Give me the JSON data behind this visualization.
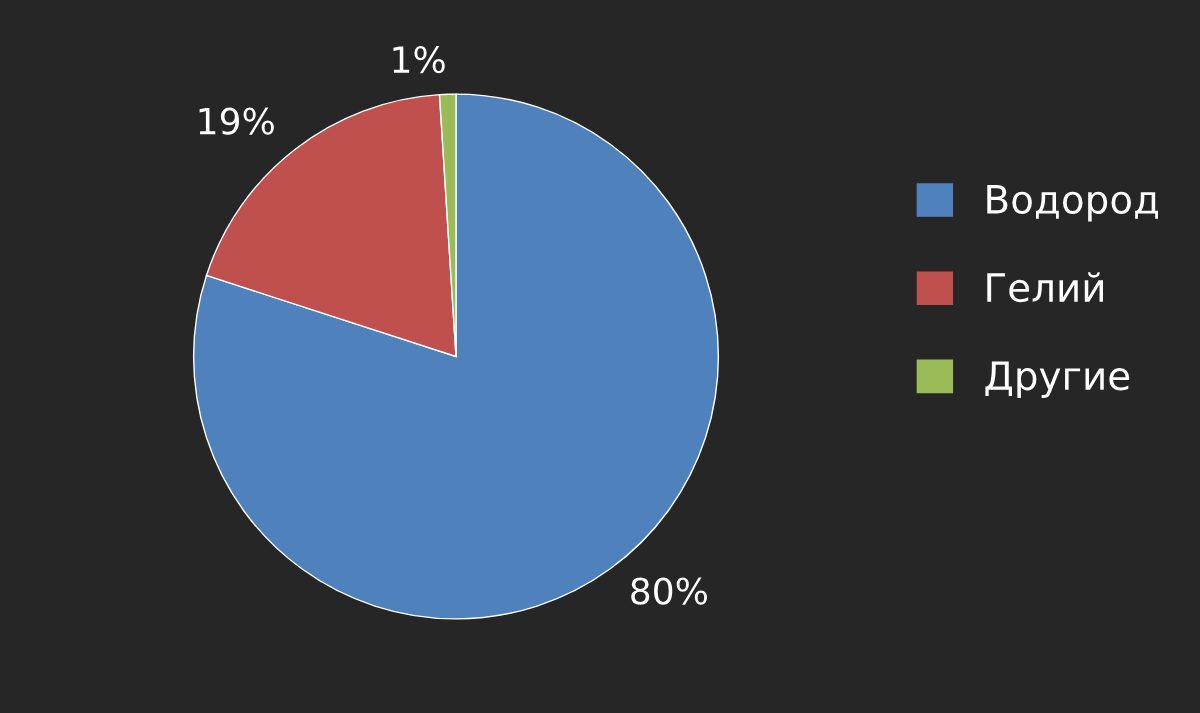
{
  "chart_data": {
    "type": "pie",
    "categories": [
      "Водород",
      "Гелий",
      "Другие"
    ],
    "values": [
      80,
      19,
      1
    ],
    "colors": [
      "#4f81bd",
      "#c0504d",
      "#9bbb59"
    ],
    "value_labels": [
      "80%",
      "19%",
      "1%"
    ],
    "legend": "right"
  }
}
